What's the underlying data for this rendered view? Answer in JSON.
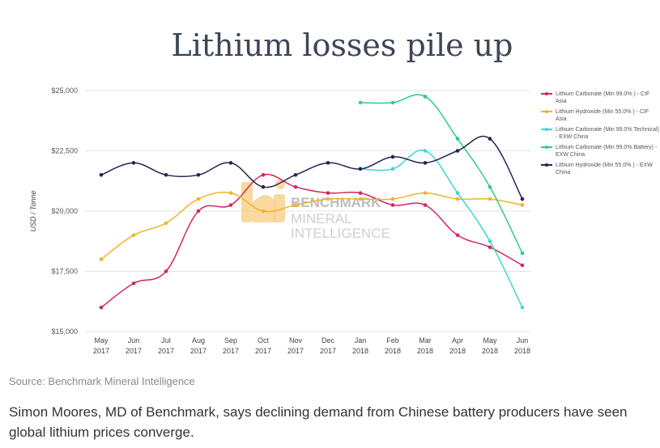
{
  "page": {
    "title": "Lithium losses pile up",
    "source": "Source: Benchmark Mineral Intelligence",
    "caption": "Simon Moores, MD of Benchmark, says declining demand from Chinese battery producers have seen global lithium prices converge.",
    "watermark": {
      "line1": "BENCHMARK",
      "line2": "MINERAL",
      "line3": "INTELLIGENCE",
      "logo_color": "#f7c977"
    }
  },
  "chart_data": {
    "type": "line",
    "title": "Lithium losses pile up",
    "xlabel": "",
    "ylabel": "USD / Tonne",
    "ylim": [
      15000,
      25000
    ],
    "y_ticks": [
      15000,
      17500,
      20000,
      22500,
      25000
    ],
    "y_tick_labels": [
      "$15,000",
      "$17,500",
      "$20,000",
      "$22,500",
      "$25,000"
    ],
    "grid": true,
    "legend_position": "right",
    "categories": [
      [
        "May",
        "2017"
      ],
      [
        "Jun",
        "2017"
      ],
      [
        "Jul",
        "2017"
      ],
      [
        "Aug",
        "2017"
      ],
      [
        "Sep",
        "2017"
      ],
      [
        "Oct",
        "2017"
      ],
      [
        "Nov",
        "2017"
      ],
      [
        "Dec",
        "2017"
      ],
      [
        "Jan",
        "2018"
      ],
      [
        "Feb",
        "2018"
      ],
      [
        "Mar",
        "2018"
      ],
      [
        "Apr",
        "2018"
      ],
      [
        "May",
        "2018"
      ],
      [
        "Jun",
        "2018"
      ]
    ],
    "series": [
      {
        "name": "Lithium Carbonate (Min 99.0% ) - CIF Asia",
        "legend_lines": [
          "Lithium Carbonate (Min 99.0% ) - CIF",
          "Asia"
        ],
        "color": "#d4275e",
        "values": [
          16000,
          17000,
          17500,
          20000,
          20250,
          21500,
          21000,
          20750,
          20750,
          20250,
          20250,
          19000,
          18500,
          17750
        ]
      },
      {
        "name": "Lithium Hydroxide (Min 55.0% ) - CIF Asia",
        "legend_lines": [
          "Lithium Hydroxide (Min 55.0% ) - CIF",
          "Asia"
        ],
        "color": "#f0b429",
        "values": [
          18000,
          19000,
          19500,
          20500,
          20750,
          20000,
          20250,
          20500,
          20500,
          20500,
          20750,
          20500,
          20500,
          20250
        ]
      },
      {
        "name": "Lithium Carbonate (Min 99.0% Technical) - EXW China",
        "legend_lines": [
          "Lithium Carbonate (Min 99.0% Technical)",
          "- EXW China"
        ],
        "color": "#3ed6d6",
        "values": [
          null,
          null,
          null,
          null,
          null,
          null,
          null,
          null,
          21750,
          21750,
          22500,
          20750,
          18750,
          16000
        ]
      },
      {
        "name": "Lithium Carbonate (Min 99.0% Battery) - EXW China",
        "legend_lines": [
          "Lithium Carbonate (Min 99.0% Battery) -",
          "EXW China"
        ],
        "color": "#2ecc8a",
        "values": [
          null,
          null,
          null,
          null,
          null,
          null,
          null,
          null,
          24500,
          24500,
          24750,
          23000,
          21000,
          18250
        ]
      },
      {
        "name": "Lithium Hydroxide (Min 55.0% ) - EXW China",
        "legend_lines": [
          "Lithium Hydroxide (Min 55.0% ) - EXW",
          "China"
        ],
        "color": "#26244f",
        "values": [
          21500,
          22000,
          21500,
          21500,
          22000,
          21000,
          21500,
          22000,
          21750,
          22250,
          22000,
          22500,
          23000,
          20500
        ]
      }
    ]
  }
}
